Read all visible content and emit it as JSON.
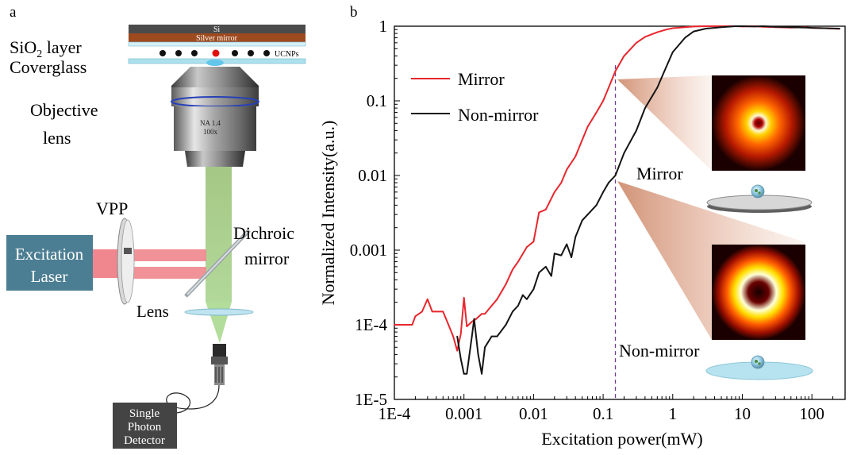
{
  "panel_a": {
    "label": "a",
    "si_label": "Si",
    "mirror_label": "Silver mirror",
    "ucnps_label": "UCNPs",
    "sio2_prefix": "SiO",
    "sio2_sub": "2",
    "sio2_suffix": " layer",
    "coverglass_label": "Coverglass",
    "objective_line1": "Objective",
    "objective_line2": "lens",
    "objective_engraving_1": "NA 1.4",
    "objective_engraving_2": "100x",
    "vpp_label": "VPP",
    "laser_line1": "Excitation",
    "laser_line2": "Laser",
    "dichroic_line1": "Dichroic",
    "dichroic_line2": "mirror",
    "lens_label": "Lens",
    "detector_line1": "Single",
    "detector_line2": "Photon",
    "detector_line3": "Detector"
  },
  "panel_b": {
    "label": "b",
    "mirror_annotation": "Mirror",
    "nonmirror_annotation": "Non-mirror"
  },
  "chart_data": {
    "type": "line",
    "xlabel": "Excitation power(mW)",
    "ylabel": "Normalized Intensity(a.u.)",
    "xscale": "log",
    "yscale": "log",
    "xlim": [
      0.0001,
      300
    ],
    "ylim": [
      1e-05,
      1
    ],
    "xticks": [
      0.0001,
      0.001,
      0.01,
      0.1,
      1,
      10,
      100
    ],
    "xtick_labels": [
      "1E-4",
      "0.001",
      "0.01",
      "0.1",
      "1",
      "10",
      "100"
    ],
    "yticks": [
      1e-05,
      0.0001,
      0.001,
      0.01,
      0.1,
      1
    ],
    "ytick_labels": [
      "1E-5",
      "1E-4",
      "0.001",
      "0.01",
      "0.1",
      "1"
    ],
    "legend_position": "top-left",
    "marker_line_x": 0.15,
    "series": [
      {
        "name": "Mirror",
        "color": "#e8262d",
        "x": [
          0.0001,
          0.00018,
          0.0002,
          0.00025,
          0.0003,
          0.00035,
          0.0005,
          0.0006,
          0.0007,
          0.0008,
          0.0009,
          0.001,
          0.0011,
          0.0013,
          0.0015,
          0.0018,
          0.002,
          0.0025,
          0.003,
          0.004,
          0.005,
          0.006,
          0.008,
          0.01,
          0.012,
          0.015,
          0.02,
          0.025,
          0.03,
          0.04,
          0.05,
          0.06,
          0.08,
          0.1,
          0.12,
          0.15,
          0.2,
          0.3,
          0.4,
          0.6,
          0.8,
          1,
          1.5,
          2,
          3,
          5,
          8,
          10,
          15,
          20,
          30,
          50,
          80,
          100,
          150,
          250
        ],
        "y": [
          0.0001,
          0.0001,
          0.00013,
          0.00015,
          0.00022,
          0.00015,
          0.00015,
          0.0001,
          7e-05,
          4.5e-05,
          7.5e-05,
          0.00023,
          9.5e-05,
          0.00011,
          0.00012,
          0.00014,
          0.00014,
          0.00018,
          0.00022,
          0.00035,
          0.00055,
          0.0007,
          0.0011,
          0.0013,
          0.0032,
          0.0035,
          0.006,
          0.008,
          0.012,
          0.018,
          0.03,
          0.045,
          0.07,
          0.1,
          0.15,
          0.25,
          0.4,
          0.6,
          0.72,
          0.83,
          0.9,
          0.94,
          0.97,
          0.99,
          1,
          1,
          1,
          0.99,
          1,
          0.98,
          0.97,
          0.96,
          0.97,
          0.95,
          0.94,
          0.92
        ]
      },
      {
        "name": "Non-mirror",
        "color": "#141414",
        "x": [
          0.0008,
          0.0009,
          0.001,
          0.0011,
          0.0012,
          0.0013,
          0.0014,
          0.0016,
          0.0018,
          0.002,
          0.0025,
          0.003,
          0.004,
          0.005,
          0.006,
          0.007,
          0.008,
          0.01,
          0.012,
          0.015,
          0.018,
          0.02,
          0.025,
          0.03,
          0.035,
          0.04,
          0.05,
          0.06,
          0.08,
          0.1,
          0.12,
          0.15,
          0.2,
          0.3,
          0.4,
          0.6,
          0.8,
          1,
          1.5,
          2,
          3,
          5,
          8,
          10,
          15,
          20,
          30,
          50,
          80,
          100,
          150,
          250
        ],
        "y": [
          7e-05,
          3.5e-05,
          2.2e-05,
          2.2e-05,
          4e-05,
          7e-05,
          0.00012,
          4e-05,
          2.2e-05,
          5e-05,
          7e-05,
          7e-05,
          0.0001,
          0.00015,
          0.00018,
          0.00025,
          0.00022,
          0.0003,
          0.0005,
          0.0006,
          0.00045,
          0.0009,
          0.00085,
          0.0012,
          0.0008,
          0.0015,
          0.0025,
          0.003,
          0.004,
          0.006,
          0.008,
          0.01,
          0.02,
          0.04,
          0.08,
          0.15,
          0.28,
          0.45,
          0.7,
          0.85,
          0.93,
          0.97,
          1,
          1,
          0.99,
          1,
          0.98,
          0.97,
          0.96,
          0.95,
          0.94,
          0.93
        ]
      }
    ]
  }
}
